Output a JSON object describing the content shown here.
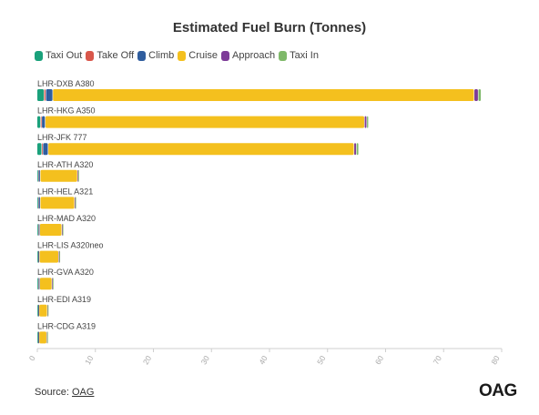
{
  "chart_data": {
    "type": "bar",
    "orientation": "horizontal",
    "stacked": true,
    "title": "Estimated Fuel Burn (Tonnes)",
    "categories": [
      "LHR-DXB A380",
      "LHR-HKG A350",
      "LHR-JFK 777",
      "LHR-ATH A320",
      "LHR-HEL A321",
      "LHR-MAD A320",
      "LHR-LIS A320neo",
      "LHR-GVA A320",
      "LHR-EDI A319",
      "LHR-CDG A319"
    ],
    "series": [
      {
        "name": "Taxi Out",
        "color": "#1aa17b",
        "values": [
          1.2,
          0.6,
          0.8,
          0.2,
          0.2,
          0.2,
          0.15,
          0.2,
          0.15,
          0.15
        ]
      },
      {
        "name": "Take Off",
        "color": "#d9574b",
        "values": [
          0.3,
          0.2,
          0.2,
          0.05,
          0.05,
          0.05,
          0.05,
          0.05,
          0.05,
          0.05
        ]
      },
      {
        "name": "Climb",
        "color": "#2f5d9e",
        "values": [
          1.2,
          0.6,
          0.9,
          0.3,
          0.3,
          0.2,
          0.2,
          0.2,
          0.15,
          0.15
        ]
      },
      {
        "name": "Cruise",
        "color": "#f4c01e",
        "values": [
          72.6,
          55.0,
          52.7,
          6.4,
          5.9,
          3.8,
          3.3,
          2.1,
          1.4,
          1.3
        ]
      },
      {
        "name": "Approach",
        "color": "#7d3c98",
        "values": [
          0.7,
          0.4,
          0.4,
          0.1,
          0.1,
          0.1,
          0.1,
          0.1,
          0.05,
          0.05
        ]
      },
      {
        "name": "Taxi In",
        "color": "#7fb96a",
        "values": [
          0.5,
          0.3,
          0.4,
          0.1,
          0.1,
          0.1,
          0.1,
          0.1,
          0.1,
          0.1
        ]
      }
    ],
    "xlim": [
      0,
      80
    ],
    "xticks": [
      0,
      10,
      20,
      30,
      40,
      50,
      60,
      70,
      80
    ],
    "grid": false,
    "legend_position": "top-left"
  },
  "footer": {
    "source_label": "Source:",
    "source_link": "OAG",
    "logo_text": "OAG"
  }
}
